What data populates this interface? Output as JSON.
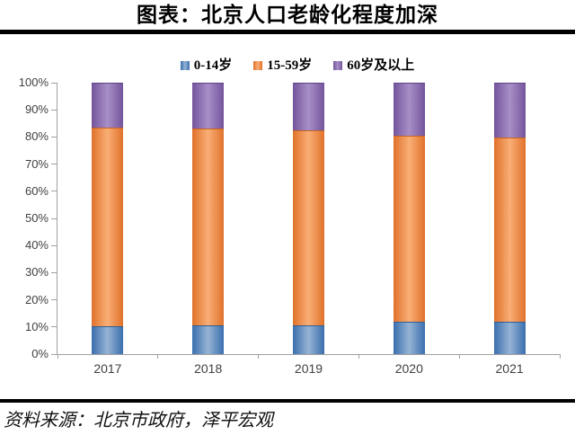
{
  "header": {
    "title": "图表：北京人口老龄化程度加深"
  },
  "footer": {
    "source": "资料来源：北京市政府，泽平宏观"
  },
  "colors": {
    "axis": "#a0a0a0",
    "tick_label": "#3f3f3f",
    "rule": "#000000",
    "background": "#ffffff"
  },
  "chart_data": {
    "type": "bar",
    "stacked": true,
    "title": "图表：北京人口老龄化程度加深",
    "categories": [
      "2017",
      "2018",
      "2019",
      "2020",
      "2021"
    ],
    "series": [
      {
        "name": "0-14岁",
        "color": "#4f81bd",
        "edge": "#3a6fae",
        "mid": "#96b3d4",
        "cap": "#2f5f96",
        "values": [
          10.4,
          10.5,
          10.5,
          11.9,
          11.9
        ]
      },
      {
        "name": "15-59岁",
        "color": "#f79646",
        "edge": "#e0722b",
        "mid": "#f9ae75",
        "cap": "#c96420",
        "values": [
          73.1,
          72.5,
          72.0,
          68.5,
          67.8
        ]
      },
      {
        "name": "60岁及以上",
        "color": "#8064a2",
        "edge": "#74549c",
        "mid": "#a78fc7",
        "cap": "#5d4385",
        "values": [
          16.5,
          17.0,
          17.5,
          19.6,
          20.3
        ]
      }
    ],
    "y_ticks": [
      "0%",
      "10%",
      "20%",
      "30%",
      "40%",
      "50%",
      "60%",
      "70%",
      "80%",
      "90%",
      "100%"
    ],
    "ylim": [
      0,
      100
    ],
    "unit": "%",
    "xlabel": "",
    "ylabel": "",
    "grid": false,
    "legend_position": "top"
  }
}
